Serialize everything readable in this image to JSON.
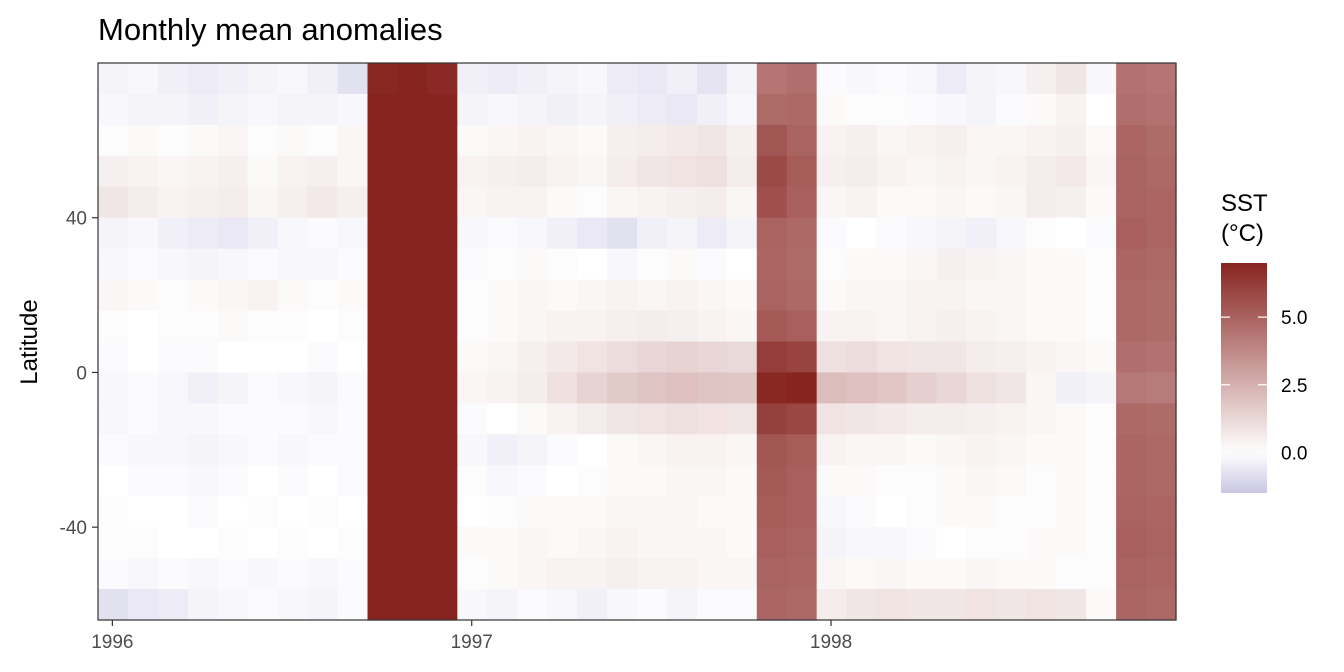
{
  "chart_data": {
    "type": "heatmap",
    "title": "Monthly mean anomalies",
    "xlabel": "",
    "ylabel": "Latitude",
    "x_ticks": [
      "1996",
      "1997",
      "1998"
    ],
    "y_ticks": [
      "40",
      "0",
      "-40"
    ],
    "x_tick_values": [
      1996,
      1997,
      1998
    ],
    "y_tick_values": [
      40,
      0,
      -40
    ],
    "xlim": [
      1995.96,
      1998.96
    ],
    "ylim": [
      -64,
      80
    ],
    "months": [
      "1996-01",
      "1996-02",
      "1996-03",
      "1996-04",
      "1996-05",
      "1996-06",
      "1996-07",
      "1996-08",
      "1996-09",
      "1996-10",
      "1996-11",
      "1996-12",
      "1997-01",
      "1997-02",
      "1997-03",
      "1997-04",
      "1997-05",
      "1997-06",
      "1997-07",
      "1997-08",
      "1997-09",
      "1997-10",
      "1997-11",
      "1997-12",
      "1998-01",
      "1998-02",
      "1998-03",
      "1998-04",
      "1998-05",
      "1998-06",
      "1998-07",
      "1998-08",
      "1998-09",
      "1998-10",
      "1998-11",
      "1998-12"
    ],
    "latitudes": [
      78,
      70,
      62,
      54,
      46,
      38,
      30,
      22,
      14,
      6,
      -2,
      -10,
      -18,
      -26,
      -34,
      -42,
      -50,
      -58
    ],
    "values": [
      [
        -0.3,
        -0.2,
        -0.4,
        -0.5,
        -0.4,
        -0.3,
        -0.2,
        -0.4,
        -0.8,
        6.9,
        7.1,
        6.8,
        -0.4,
        -0.5,
        -0.4,
        -0.3,
        -0.2,
        -0.5,
        -0.6,
        -0.4,
        -0.7,
        -0.3,
        4.4,
        4.6,
        -0.1,
        -0.2,
        -0.1,
        -0.2,
        -0.5,
        -0.3,
        -0.2,
        0.5,
        0.8,
        -0.2,
        4.5,
        4.4
      ],
      [
        -0.2,
        -0.3,
        -0.3,
        -0.4,
        -0.3,
        -0.2,
        -0.3,
        -0.3,
        -0.2,
        7.0,
        7.2,
        7.0,
        -0.3,
        -0.2,
        -0.3,
        -0.4,
        -0.3,
        -0.4,
        -0.5,
        -0.6,
        -0.4,
        -0.2,
        4.7,
        4.8,
        0.2,
        0.1,
        0.1,
        -0.1,
        -0.2,
        -0.3,
        -0.1,
        0.2,
        0.4,
        0.0,
        4.6,
        4.5
      ],
      [
        0.1,
        0.2,
        0.1,
        0.2,
        0.3,
        0.1,
        0.2,
        0.1,
        0.3,
        7.2,
        7.4,
        7.3,
        0.2,
        0.3,
        0.4,
        0.3,
        0.2,
        0.5,
        0.6,
        0.7,
        0.8,
        0.5,
        5.4,
        5.0,
        0.4,
        0.5,
        0.3,
        0.4,
        0.5,
        0.3,
        0.3,
        0.4,
        0.5,
        0.2,
        4.9,
        4.7
      ],
      [
        0.5,
        0.4,
        0.3,
        0.4,
        0.5,
        0.2,
        0.4,
        0.5,
        0.3,
        7.4,
        7.6,
        7.7,
        0.4,
        0.5,
        0.6,
        0.4,
        0.3,
        0.6,
        0.8,
        0.9,
        1.0,
        0.6,
        5.8,
        5.2,
        0.5,
        0.6,
        0.4,
        0.3,
        0.4,
        0.3,
        0.4,
        0.6,
        0.7,
        0.3,
        5.0,
        4.8
      ],
      [
        0.8,
        0.6,
        0.4,
        0.5,
        0.6,
        0.3,
        0.5,
        0.7,
        0.5,
        7.5,
        7.7,
        7.9,
        0.3,
        0.4,
        0.4,
        0.2,
        0.1,
        0.3,
        0.4,
        0.5,
        0.6,
        0.3,
        5.6,
        5.1,
        0.3,
        0.4,
        0.2,
        0.2,
        0.3,
        0.2,
        0.3,
        0.6,
        0.5,
        0.2,
        5.0,
        4.9
      ],
      [
        -0.3,
        -0.2,
        -0.4,
        -0.5,
        -0.6,
        -0.4,
        -0.2,
        -0.1,
        -0.2,
        7.2,
        7.4,
        7.6,
        -0.2,
        -0.1,
        -0.2,
        -0.4,
        -0.6,
        -0.8,
        -0.4,
        -0.3,
        -0.5,
        -0.3,
        5.0,
        4.8,
        -0.1,
        0.0,
        -0.1,
        -0.2,
        -0.3,
        -0.4,
        -0.2,
        0.1,
        0.0,
        -0.1,
        5.1,
        4.9
      ],
      [
        -0.2,
        -0.1,
        -0.2,
        -0.3,
        -0.2,
        -0.1,
        -0.2,
        -0.2,
        -0.1,
        7.0,
        7.2,
        7.3,
        -0.1,
        0.1,
        0.2,
        0.1,
        0.0,
        -0.2,
        0.1,
        0.2,
        -0.1,
        0.0,
        4.9,
        4.7,
        0.1,
        0.2,
        0.2,
        0.3,
        0.5,
        0.4,
        0.3,
        0.2,
        0.2,
        0.1,
        4.9,
        4.8
      ],
      [
        0.3,
        0.2,
        0.1,
        0.2,
        0.3,
        0.4,
        0.2,
        0.1,
        0.2,
        7.0,
        7.2,
        7.2,
        0.1,
        0.2,
        0.3,
        0.2,
        0.3,
        0.4,
        0.3,
        0.4,
        0.3,
        0.2,
        5.0,
        4.8,
        0.2,
        0.3,
        0.3,
        0.4,
        0.4,
        0.3,
        0.3,
        0.2,
        0.2,
        0.1,
        4.8,
        4.7
      ],
      [
        0.1,
        0.0,
        0.1,
        0.1,
        0.2,
        0.1,
        0.1,
        0.0,
        0.1,
        7.0,
        7.3,
        7.3,
        0.1,
        0.2,
        0.3,
        0.4,
        0.4,
        0.5,
        0.6,
        0.5,
        0.4,
        0.3,
        5.3,
        5.1,
        0.4,
        0.4,
        0.3,
        0.4,
        0.5,
        0.4,
        0.3,
        0.2,
        0.2,
        0.1,
        4.8,
        4.7
      ],
      [
        -0.1,
        0.0,
        -0.1,
        -0.1,
        0.0,
        0.0,
        0.0,
        -0.1,
        0.0,
        7.1,
        7.4,
        7.4,
        0.2,
        0.3,
        0.5,
        0.7,
        0.9,
        1.1,
        1.3,
        1.4,
        1.3,
        1.2,
        6.2,
        6.0,
        1.0,
        1.1,
        0.9,
        0.8,
        0.8,
        0.6,
        0.5,
        0.4,
        0.3,
        0.2,
        4.6,
        4.5
      ],
      [
        -0.2,
        -0.1,
        -0.2,
        -0.4,
        -0.3,
        -0.1,
        -0.2,
        -0.3,
        -0.1,
        7.2,
        7.5,
        7.5,
        0.3,
        0.4,
        0.6,
        1.0,
        1.4,
        1.7,
        1.9,
        2.0,
        1.9,
        1.8,
        6.9,
        7.1,
        2.1,
        2.0,
        1.8,
        1.5,
        1.3,
        1.0,
        0.8,
        0.3,
        -0.4,
        -0.3,
        4.3,
        4.2
      ],
      [
        -0.2,
        -0.1,
        -0.2,
        -0.2,
        -0.1,
        -0.1,
        -0.1,
        -0.2,
        -0.1,
        7.1,
        7.3,
        7.4,
        -0.1,
        0.0,
        0.2,
        0.4,
        0.6,
        0.8,
        0.9,
        1.0,
        0.9,
        0.8,
        6.1,
        5.9,
        0.9,
        0.8,
        0.7,
        0.6,
        0.6,
        0.5,
        0.4,
        0.3,
        0.2,
        0.1,
        4.8,
        4.7
      ],
      [
        -0.1,
        -0.2,
        -0.2,
        -0.3,
        -0.2,
        -0.1,
        -0.2,
        -0.1,
        -0.1,
        7.2,
        7.3,
        7.5,
        -0.2,
        -0.4,
        -0.3,
        -0.1,
        0.0,
        0.2,
        0.3,
        0.4,
        0.4,
        0.3,
        5.4,
        5.2,
        0.4,
        0.3,
        0.3,
        0.2,
        0.3,
        0.4,
        0.3,
        0.2,
        0.2,
        0.1,
        4.9,
        4.8
      ],
      [
        0.0,
        -0.1,
        -0.1,
        -0.2,
        -0.1,
        0.0,
        -0.1,
        0.0,
        -0.1,
        7.1,
        7.3,
        7.4,
        0.1,
        -0.2,
        -0.1,
        0.0,
        0.1,
        0.2,
        0.2,
        0.3,
        0.3,
        0.2,
        5.3,
        5.1,
        0.2,
        0.2,
        0.1,
        0.1,
        0.2,
        0.3,
        0.2,
        0.1,
        0.2,
        0.1,
        4.9,
        4.8
      ],
      [
        0.1,
        0.0,
        0.0,
        -0.1,
        0.0,
        0.1,
        0.0,
        0.1,
        0.0,
        7.0,
        7.2,
        7.3,
        0.0,
        0.1,
        0.2,
        0.2,
        0.2,
        0.3,
        0.3,
        0.3,
        0.2,
        0.2,
        5.2,
        5.1,
        -0.2,
        -0.1,
        0.0,
        0.1,
        0.2,
        0.2,
        0.1,
        0.1,
        0.2,
        0.1,
        5.0,
        4.9
      ],
      [
        0.1,
        0.1,
        0.0,
        0.0,
        0.1,
        0.0,
        0.1,
        0.0,
        0.1,
        7.1,
        7.3,
        7.4,
        0.2,
        0.2,
        0.3,
        0.2,
        0.3,
        0.4,
        0.3,
        0.3,
        0.3,
        0.2,
        5.1,
        5.0,
        -0.3,
        -0.2,
        -0.2,
        -0.1,
        0.0,
        0.1,
        0.1,
        0.2,
        0.2,
        0.1,
        5.1,
        5.0
      ],
      [
        -0.1,
        -0.2,
        -0.1,
        -0.2,
        -0.1,
        -0.2,
        -0.1,
        -0.2,
        -0.1,
        7.2,
        7.4,
        7.5,
        0.1,
        0.2,
        0.3,
        0.4,
        0.4,
        0.5,
        0.4,
        0.4,
        0.3,
        0.3,
        5.0,
        4.9,
        0.3,
        0.2,
        0.3,
        0.2,
        0.2,
        0.3,
        0.2,
        0.2,
        0.1,
        0.1,
        5.0,
        4.9
      ],
      [
        -0.8,
        -0.6,
        -0.5,
        -0.3,
        -0.2,
        -0.1,
        -0.2,
        -0.3,
        -0.1,
        7.3,
        7.5,
        7.6,
        -0.2,
        -0.3,
        -0.1,
        -0.2,
        -0.4,
        -0.2,
        -0.1,
        -0.3,
        -0.1,
        -0.1,
        4.9,
        4.8,
        0.6,
        0.8,
        0.9,
        0.8,
        0.8,
        0.9,
        0.8,
        0.9,
        0.8,
        0.2,
        4.9,
        4.8
      ]
    ],
    "colorbar": {
      "title_line1": "SST",
      "title_line2": "(°C)",
      "ticks": [
        "5.0",
        "2.5",
        "0.0"
      ],
      "tick_values": [
        5.0,
        2.5,
        0.0
      ],
      "range": [
        -1.5,
        7.0
      ],
      "low_color": "#c9c6e3",
      "mid_color": "#ffffff",
      "high_color": "#872420"
    }
  }
}
